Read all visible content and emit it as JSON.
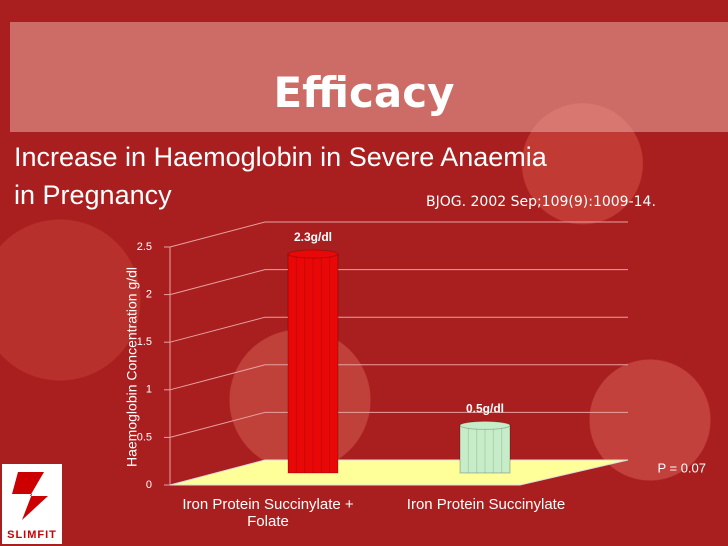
{
  "title": "Efficacy",
  "logo": "SLIMFIT",
  "chart_data": {
    "type": "bar",
    "subtitle": [
      "Increase in Haemoglobin in Severe Anaemia",
      "in Pregnancy"
    ],
    "source": "BJOG. 2002 Sep;109(9):1009-14.",
    "y_label": "Haemoglobin Concentration g/dl",
    "categories": [
      "Iron Protein Succinylate + Folate",
      "Iron Protein Succinylate"
    ],
    "values": [
      2.3,
      0.5
    ],
    "value_labels": [
      "2.3g/dl",
      "0.5g/dl"
    ],
    "colors": [
      "#e80808",
      "#c6ecc8"
    ],
    "ylim": [
      0,
      2.5
    ],
    "yticks": [
      0,
      0.5,
      1,
      1.5,
      2,
      2.5
    ],
    "grid": true,
    "annotation": "P = 0.07"
  }
}
